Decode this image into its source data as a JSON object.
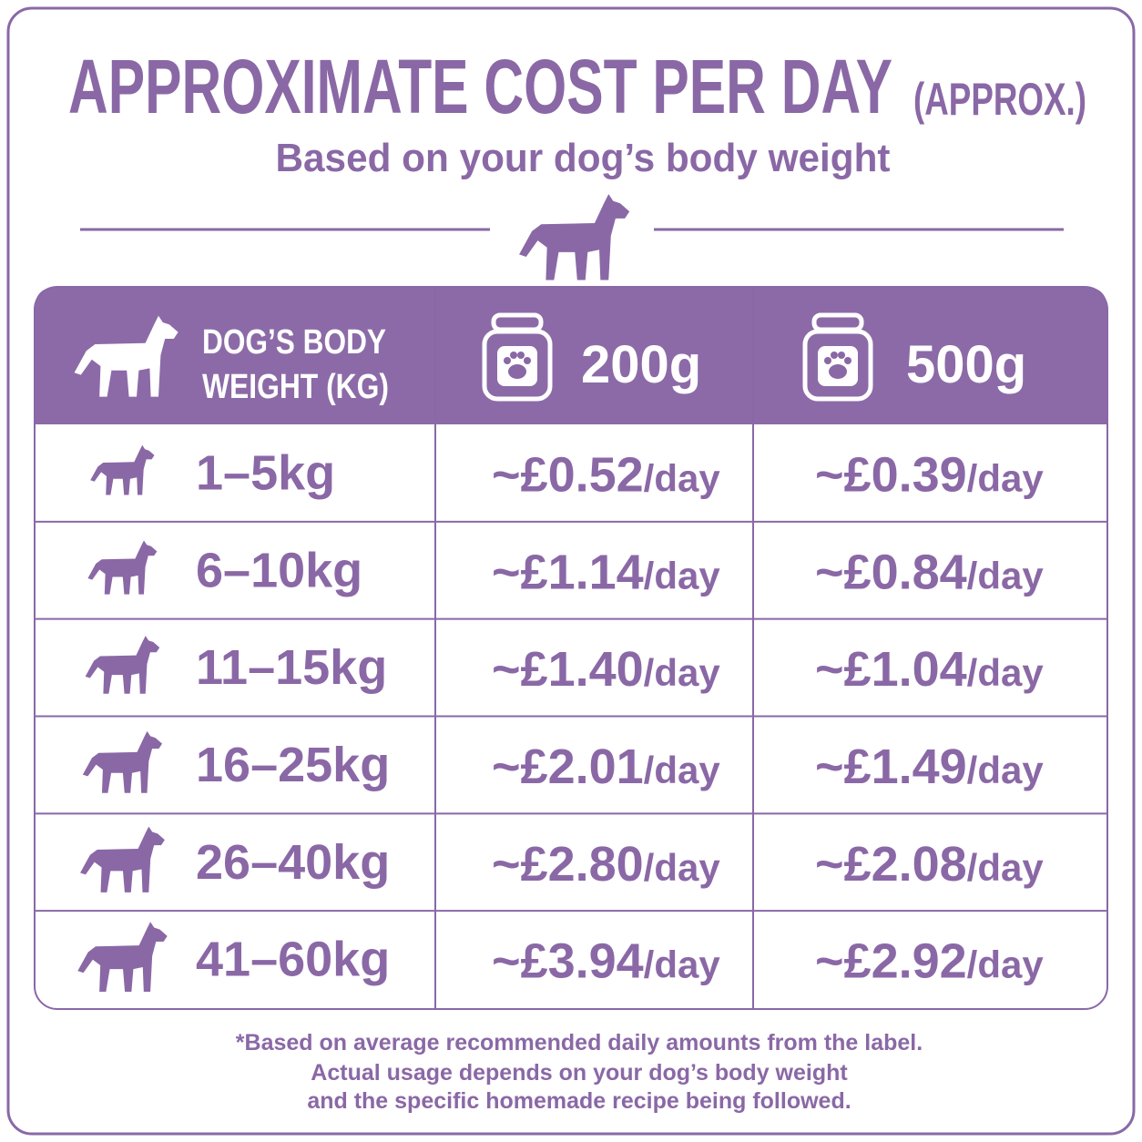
{
  "header": {
    "title": "APPROXIMATE COST PER DAY",
    "title_suffix": "(APPROX.)",
    "subtitle": "Based on your dog’s body weight"
  },
  "table": {
    "columns": [
      [
        "DOG’S BODY",
        "WEIGHT (KG)"
      ],
      "200g",
      "500g"
    ],
    "rows": [
      [
        "1–5kg",
        {
          "price": "~£0.52",
          "unit": "/day"
        },
        {
          "price": "~£0.39",
          "unit": "/day"
        }
      ],
      [
        "6–10kg",
        {
          "price": "~£1.14",
          "unit": "/day"
        },
        {
          "price": "~£0.84",
          "unit": "/day"
        }
      ],
      [
        "11–15kg",
        {
          "price": "~£1.40",
          "unit": "/day"
        },
        {
          "price": "~£1.04",
          "unit": "/day"
        }
      ],
      [
        "16–25kg",
        {
          "price": "~£2.01",
          "unit": "/day"
        },
        {
          "price": "~£1.49",
          "unit": "/day"
        }
      ],
      [
        "26–40kg",
        {
          "price": "~£2.80",
          "unit": "/day"
        },
        {
          "price": "~£2.08",
          "unit": "/day"
        }
      ],
      [
        "41–60kg",
        {
          "price": "~£3.94",
          "unit": "/day"
        },
        {
          "price": "~£2.92",
          "unit": "/day"
        }
      ]
    ]
  },
  "footnote": [
    "*Based on average recommended daily amounts from the label.",
    "Actual usage depends on your dog’s body weight",
    "and the specific homemade recipe being followed."
  ]
}
